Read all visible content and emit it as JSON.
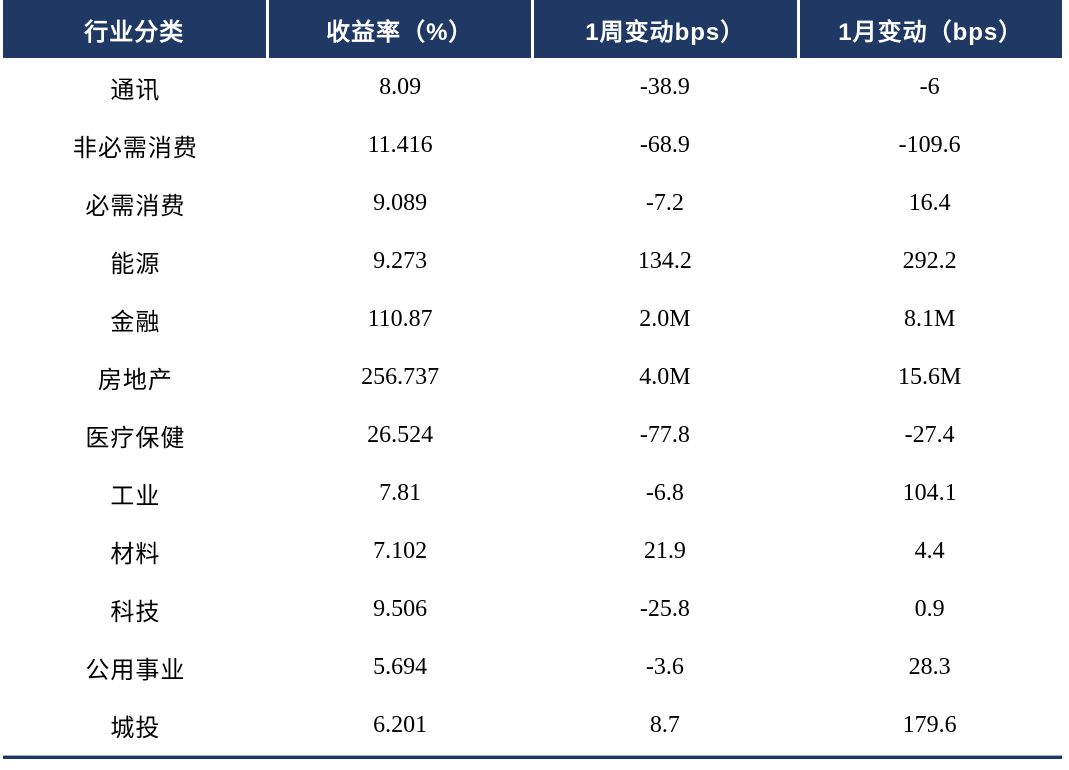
{
  "colors": {
    "header_bg": "#1f3864",
    "header_text": "#ffffff",
    "body_text": "#000000",
    "rule_color": "#1f3864",
    "rule_hilite": "#9fadc4"
  },
  "chart_data": {
    "type": "table",
    "columns": [
      "行业分类",
      "收益率（%）",
      "1周变动bps）",
      "1月变动（bps）"
    ],
    "column_keys": [
      "industry",
      "yield_pct",
      "week_change_bps",
      "month_change_bps"
    ],
    "rows": [
      [
        "通讯",
        "8.09",
        "-38.9",
        "-6"
      ],
      [
        "非必需消费",
        "11.416",
        "-68.9",
        "-109.6"
      ],
      [
        "必需消费",
        "9.089",
        "-7.2",
        "16.4"
      ],
      [
        "能源",
        "9.273",
        "134.2",
        "292.2"
      ],
      [
        "金融",
        "110.87",
        "2.0M",
        "8.1M"
      ],
      [
        "房地产",
        "256.737",
        "4.0M",
        "15.6M"
      ],
      [
        "医疗保健",
        "26.524",
        "-77.8",
        "-27.4"
      ],
      [
        "工业",
        "7.81",
        "-6.8",
        "104.1"
      ],
      [
        "材料",
        "7.102",
        "21.9",
        "4.4"
      ],
      [
        "科技",
        "9.506",
        "-25.8",
        "0.9"
      ],
      [
        "公用事业",
        "5.694",
        "-3.6",
        "28.3"
      ],
      [
        "城投",
        "6.201",
        "8.7",
        "179.6"
      ]
    ]
  }
}
